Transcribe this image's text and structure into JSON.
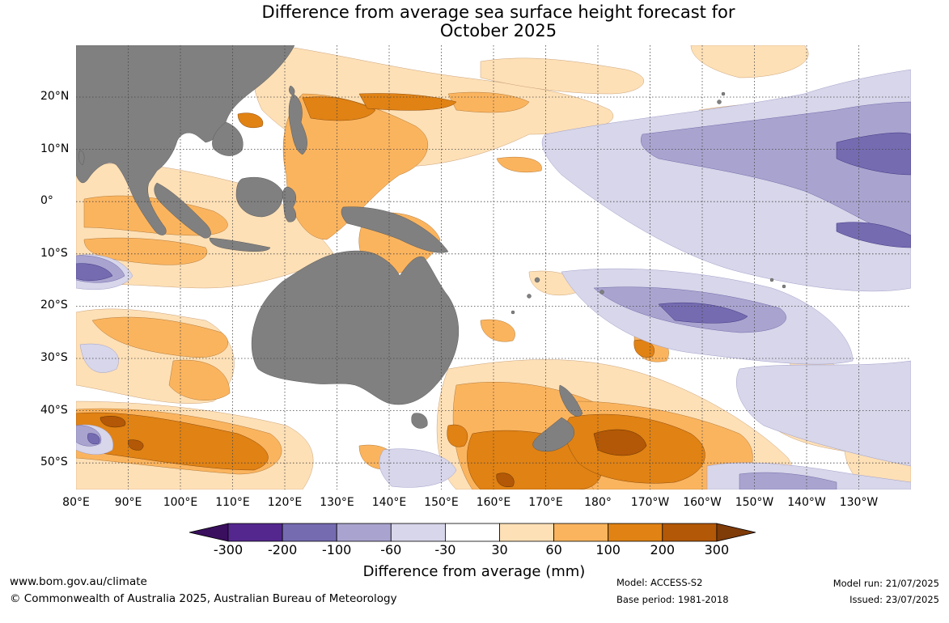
{
  "title": {
    "line1": "Difference from average sea surface height forecast for",
    "line2": "October 2025"
  },
  "map": {
    "lat_labels": [
      "20°N",
      "10°N",
      "0°",
      "10°S",
      "20°S",
      "30°S",
      "40°S",
      "50°S"
    ],
    "lon_labels": [
      "80°E",
      "90°E",
      "100°E",
      "110°E",
      "120°E",
      "130°E",
      "140°E",
      "150°E",
      "160°E",
      "170°E",
      "180°",
      "170°W",
      "160°W",
      "150°W",
      "140°W",
      "130°W"
    ],
    "land_color": "#808080",
    "ocean_neutral_color": "#ffffff"
  },
  "colorbar": {
    "title": "Difference from average (mm)",
    "ticks": [
      "-300",
      "-200",
      "-100",
      "-60",
      "-30",
      "30",
      "60",
      "100",
      "200",
      "300"
    ],
    "colors": [
      "#3a0f5e",
      "#54278f",
      "#756bb1",
      "#a9a4cf",
      "#d7d6ea",
      "#ffffff",
      "#fee0b6",
      "#fbb45e",
      "#e08214",
      "#b35806",
      "#7f3b08"
    ]
  },
  "footer": {
    "website": "www.bom.gov.au/climate",
    "copyright": "© Commonwealth of Australia 2025, Australian Bureau of Meteorology",
    "model": "Model: ACCESS-S2",
    "base_period": "Base period: 1981-2018",
    "model_run": "Model run: 21/07/2025",
    "issued": "Issued: 23/07/2025"
  }
}
